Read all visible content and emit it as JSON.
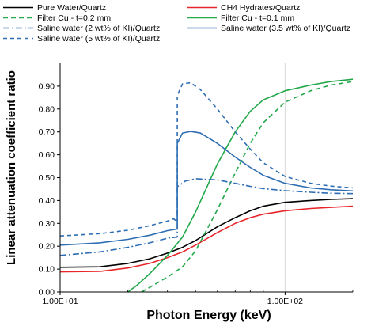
{
  "chart_data": {
    "type": "line",
    "xlabel": "Photon Energy (keV)",
    "ylabel": "Linear attenuation coefficient ratio",
    "x_scale": "log",
    "xlim": [
      10,
      200
    ],
    "ylim": [
      0,
      1.0
    ],
    "x_ticks": [
      {
        "value": 10,
        "label": "1.00E+01"
      },
      {
        "value": 100,
        "label": "1.00E+02"
      }
    ],
    "y_ticks": [
      {
        "value": 0.0,
        "label": "0.00"
      },
      {
        "value": 0.1,
        "label": "0.10"
      },
      {
        "value": 0.2,
        "label": "0.20"
      },
      {
        "value": 0.3,
        "label": "0.30"
      },
      {
        "value": 0.4,
        "label": "0.40"
      },
      {
        "value": 0.5,
        "label": "0.50"
      },
      {
        "value": 0.6,
        "label": "0.60"
      },
      {
        "value": 0.7,
        "label": "0.70"
      },
      {
        "value": 0.8,
        "label": "0.80"
      },
      {
        "value": 0.9,
        "label": "0.90"
      }
    ],
    "grid": "vertical at decades",
    "legend_placement": "top",
    "series": [
      {
        "name": "Pure Water/Quartz",
        "color": "#000000",
        "dash": "solid",
        "points": [
          [
            10,
            0.108
          ],
          [
            15,
            0.11
          ],
          [
            20,
            0.125
          ],
          [
            25,
            0.145
          ],
          [
            30,
            0.17
          ],
          [
            35,
            0.195
          ],
          [
            40,
            0.225
          ],
          [
            50,
            0.285
          ],
          [
            60,
            0.325
          ],
          [
            70,
            0.355
          ],
          [
            80,
            0.375
          ],
          [
            100,
            0.392
          ],
          [
            130,
            0.4
          ],
          [
            160,
            0.405
          ],
          [
            200,
            0.408
          ]
        ]
      },
      {
        "name": "CH4 Hydrates/Quartz",
        "color": "#e8262a",
        "dash": "solid",
        "points": [
          [
            10,
            0.088
          ],
          [
            15,
            0.09
          ],
          [
            20,
            0.105
          ],
          [
            25,
            0.125
          ],
          [
            30,
            0.15
          ],
          [
            35,
            0.175
          ],
          [
            40,
            0.205
          ],
          [
            50,
            0.26
          ],
          [
            60,
            0.3
          ],
          [
            70,
            0.325
          ],
          [
            80,
            0.34
          ],
          [
            100,
            0.355
          ],
          [
            130,
            0.365
          ],
          [
            160,
            0.37
          ],
          [
            200,
            0.375
          ]
        ]
      },
      {
        "name": "Filter Cu - t=0.2 mm",
        "color": "#22a84a",
        "dash": "6,4",
        "points": [
          [
            23,
            0.0
          ],
          [
            26,
            0.03
          ],
          [
            30,
            0.065
          ],
          [
            35,
            0.11
          ],
          [
            40,
            0.18
          ],
          [
            50,
            0.36
          ],
          [
            60,
            0.52
          ],
          [
            70,
            0.65
          ],
          [
            80,
            0.74
          ],
          [
            100,
            0.83
          ],
          [
            130,
            0.88
          ],
          [
            160,
            0.905
          ],
          [
            200,
            0.92
          ]
        ]
      },
      {
        "name": "Filter Cu - t=0.1 mm",
        "color": "#22a84a",
        "dash": "solid",
        "points": [
          [
            20,
            0.0
          ],
          [
            22,
            0.03
          ],
          [
            25,
            0.08
          ],
          [
            30,
            0.16
          ],
          [
            35,
            0.24
          ],
          [
            40,
            0.35
          ],
          [
            50,
            0.56
          ],
          [
            60,
            0.7
          ],
          [
            70,
            0.79
          ],
          [
            80,
            0.84
          ],
          [
            100,
            0.88
          ],
          [
            130,
            0.905
          ],
          [
            160,
            0.92
          ],
          [
            200,
            0.93
          ]
        ]
      },
      {
        "name": "Saline water (2 wt% of KI)/Quartz",
        "color": "#2e6db3",
        "dash": "8,3,2,3",
        "points": [
          [
            10,
            0.16
          ],
          [
            15,
            0.175
          ],
          [
            20,
            0.195
          ],
          [
            25,
            0.215
          ],
          [
            30,
            0.235
          ],
          [
            33.17,
            0.24
          ],
          [
            33.17,
            0.46
          ],
          [
            36,
            0.485
          ],
          [
            40,
            0.495
          ],
          [
            50,
            0.49
          ],
          [
            60,
            0.475
          ],
          [
            70,
            0.462
          ],
          [
            80,
            0.452
          ],
          [
            100,
            0.443
          ],
          [
            130,
            0.436
          ],
          [
            160,
            0.432
          ],
          [
            200,
            0.43
          ]
        ]
      },
      {
        "name": "Saline water (3.5 wt% of KI)/Quartz",
        "color": "#2e6db3",
        "dash": "solid",
        "points": [
          [
            10,
            0.205
          ],
          [
            15,
            0.215
          ],
          [
            20,
            0.23
          ],
          [
            25,
            0.248
          ],
          [
            30,
            0.268
          ],
          [
            33.17,
            0.275
          ],
          [
            33.17,
            0.65
          ],
          [
            35,
            0.695
          ],
          [
            38,
            0.702
          ],
          [
            42,
            0.695
          ],
          [
            50,
            0.65
          ],
          [
            60,
            0.59
          ],
          [
            70,
            0.545
          ],
          [
            80,
            0.51
          ],
          [
            100,
            0.475
          ],
          [
            130,
            0.455
          ],
          [
            160,
            0.447
          ],
          [
            200,
            0.442
          ]
        ]
      },
      {
        "name": "Saline water (5 wt% of KI)/Quartz",
        "color": "#2e6db3",
        "dash": "5,4",
        "points": [
          [
            10,
            0.245
          ],
          [
            15,
            0.255
          ],
          [
            20,
            0.27
          ],
          [
            25,
            0.29
          ],
          [
            30,
            0.31
          ],
          [
            32,
            0.32
          ],
          [
            33.17,
            0.305
          ],
          [
            33.17,
            0.86
          ],
          [
            35,
            0.91
          ],
          [
            38,
            0.915
          ],
          [
            42,
            0.885
          ],
          [
            50,
            0.8
          ],
          [
            60,
            0.7
          ],
          [
            70,
            0.625
          ],
          [
            80,
            0.565
          ],
          [
            100,
            0.505
          ],
          [
            130,
            0.475
          ],
          [
            160,
            0.463
          ],
          [
            200,
            0.455
          ]
        ]
      }
    ]
  }
}
